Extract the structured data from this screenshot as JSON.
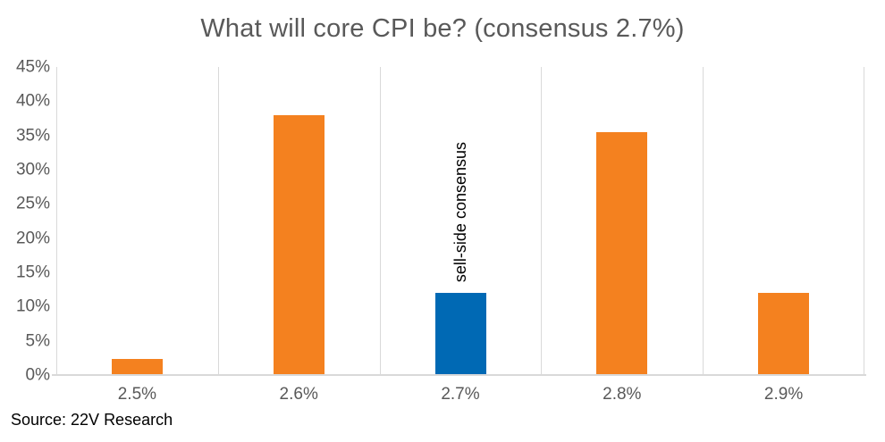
{
  "chart_data": {
    "type": "bar",
    "title": "What will core CPI be? (consensus 2.7%)",
    "categories": [
      "2.5%",
      "2.6%",
      "2.7%",
      "2.8%",
      "2.9%"
    ],
    "values": [
      2.4,
      38,
      12,
      35.5,
      12
    ],
    "highlight_index": 2,
    "highlight_label": "sell-side consensus",
    "xlabel": "",
    "ylabel": "",
    "ylim": [
      0,
      45
    ],
    "ytick_step": 5,
    "ytick_labels": [
      "0%",
      "5%",
      "10%",
      "15%",
      "20%",
      "25%",
      "30%",
      "35%",
      "40%",
      "45%"
    ],
    "legend": "none",
    "grid": "vertical-category-separators"
  },
  "source_note": "Source: 22V Research",
  "colors": {
    "bar_default": "#F4811F",
    "bar_highlight": "#0069B4",
    "gridline": "#D9D9D9",
    "axis_line": "#D9D9D9",
    "tick_text": "#595959",
    "title_text": "#595959",
    "annotation_text": "#000000",
    "source_text": "#000000"
  }
}
